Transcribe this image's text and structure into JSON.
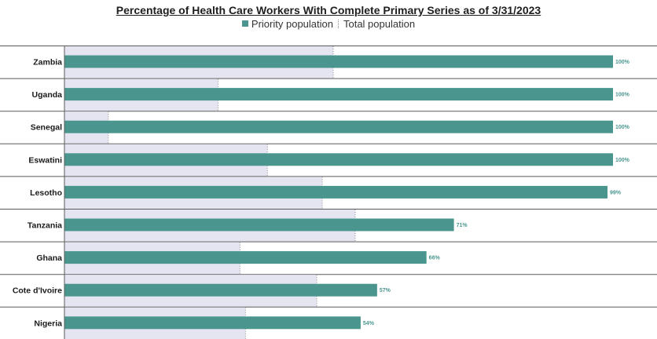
{
  "chart_data": {
    "type": "bar",
    "orientation": "horizontal",
    "title": "Percentage of Health Care Workers With Complete Primary Series as of 3/31/2023",
    "categories": [
      "Zambia",
      "Uganda",
      "Senegal",
      "Eswatini",
      "Lesotho",
      "Tanzania",
      "Ghana",
      "Cote d'Ivoire",
      "Nigeria"
    ],
    "series": [
      {
        "name": "Priority population",
        "values": [
          100,
          100,
          100,
          100,
          99,
          71,
          66,
          57,
          54
        ],
        "labels": [
          "100%",
          "100%",
          "100%",
          "100%",
          "99%",
          "71%",
          "66%",
          "57%",
          "54%"
        ],
        "color": "#4a968f"
      },
      {
        "name": "Total population",
        "values": [
          49,
          28,
          8,
          37,
          47,
          53,
          32,
          46,
          33
        ],
        "color": "#e4e5f1"
      }
    ],
    "xlim": [
      0,
      100
    ],
    "legend": "top-center",
    "grid": false
  }
}
